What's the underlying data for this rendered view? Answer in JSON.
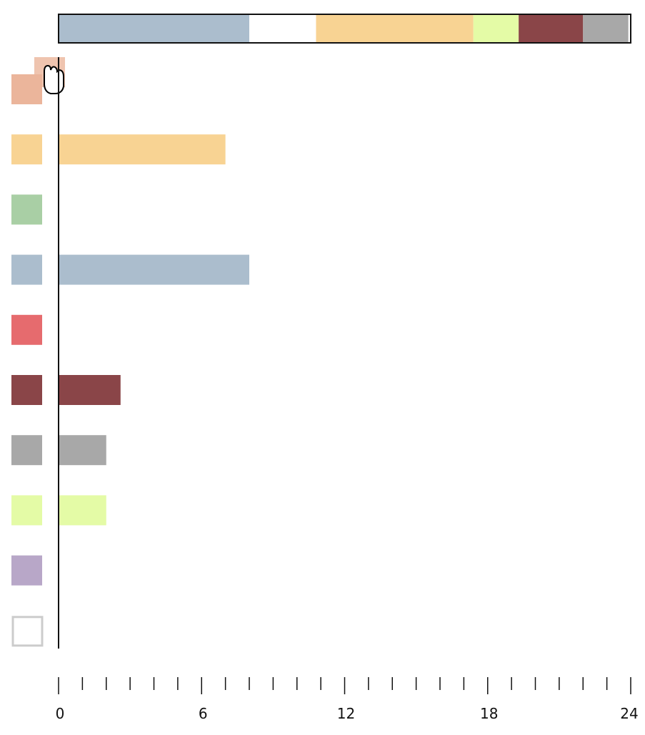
{
  "chart_data": {
    "type": "bar",
    "orientation": "horizontal",
    "categories": [
      null,
      null,
      null,
      null,
      null,
      null,
      null,
      null,
      null,
      null
    ],
    "values": [
      0,
      7,
      0,
      8,
      0,
      2.6,
      2,
      2,
      0,
      0
    ],
    "colors": [
      "#ebb59b",
      "#f8d393",
      "#a9cfa5",
      "#abbdcd",
      "#e66b6e",
      "#8a4548",
      "#a8a8a8",
      "#e4fba6",
      "#b8a7c8",
      "#ffffff"
    ],
    "stack": {
      "values": [
        8,
        2.8,
        6.6,
        1.9,
        2.7,
        1.9
      ],
      "colors": [
        "#abbdcd",
        "#ffffff",
        "#f8d393",
        "#e4fba6",
        "#8a4548",
        "#a8a8a8"
      ]
    },
    "xlim": [
      0,
      24
    ],
    "xticks": [
      0,
      6,
      12,
      18,
      24
    ],
    "minor_xticks": [
      1,
      2,
      3,
      4,
      5,
      7,
      8,
      9,
      10,
      11,
      13,
      14,
      15,
      16,
      17,
      19,
      20,
      21,
      22,
      23
    ]
  }
}
